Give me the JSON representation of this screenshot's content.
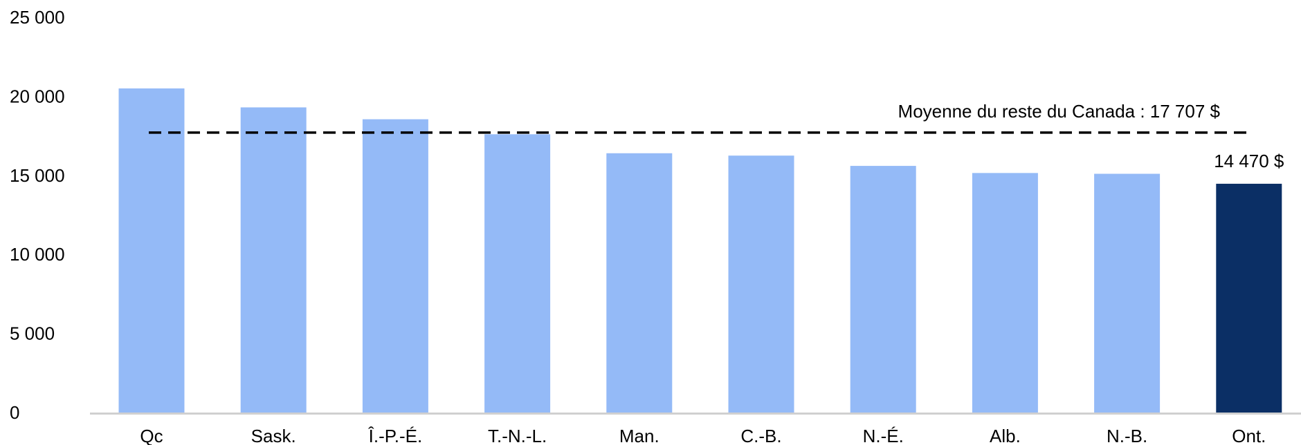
{
  "chart_data": {
    "type": "bar",
    "categories": [
      "Qc",
      "Sask.",
      "Î.-P.-É.",
      "T.-N.-L.",
      "Man.",
      "C.-B.",
      "N.-É.",
      "Alb.",
      "N.-B.",
      "Ont."
    ],
    "values": [
      20500,
      19300,
      18550,
      17600,
      16400,
      16250,
      15600,
      15150,
      15100,
      14470
    ],
    "colors": {
      "default_bar": "#94BAF7",
      "highlight_bar": "#0B2F65",
      "axis": "#D0D0D0",
      "reference_line": "#000000"
    },
    "highlight_category": "Ont.",
    "ylim": [
      0,
      25000
    ],
    "yticks": [
      0,
      5000,
      10000,
      15000,
      20000,
      25000
    ],
    "ytick_labels": [
      "0",
      "5 000",
      "10 000",
      "15 000",
      "20 000",
      "25 000"
    ],
    "grid": false,
    "legend": "none",
    "data_labels": [
      {
        "category": "Ont.",
        "text": "14 470 $"
      }
    ],
    "reference_line": {
      "value": 17707,
      "style": "dashed",
      "label": "Moyenne du reste du Canada : 17 707 $"
    },
    "title": "",
    "xlabel": "",
    "ylabel": ""
  }
}
